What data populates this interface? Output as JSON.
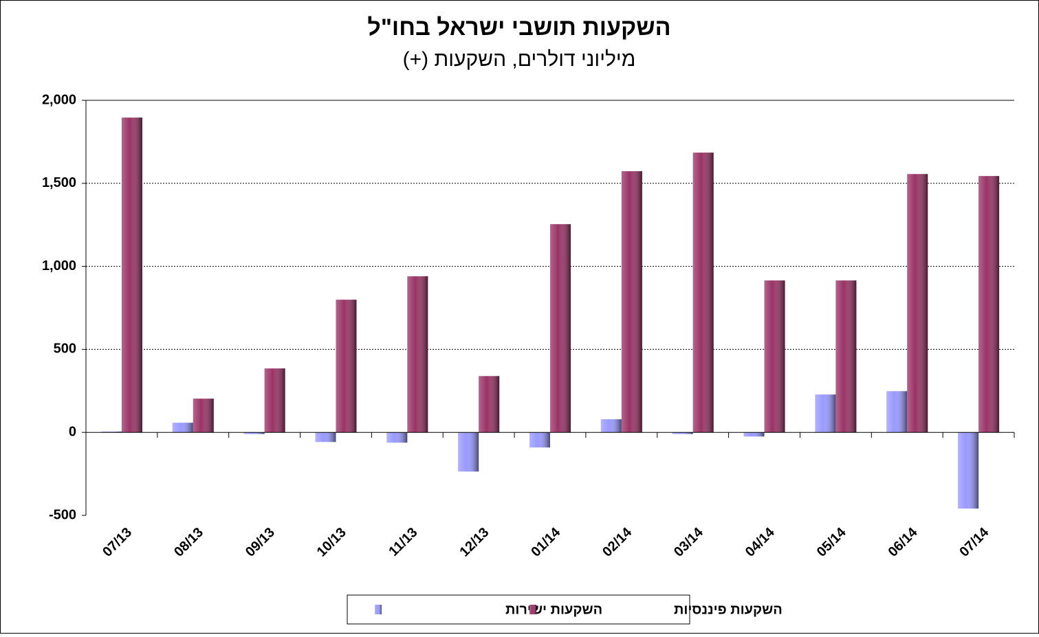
{
  "chart_data": {
    "type": "bar",
    "title": "השקעות תושבי ישראל בחו\"ל",
    "subtitle": "מיליוני דולרים, השקעות (+)",
    "categories": [
      "07/13",
      "08/13",
      "09/13",
      "10/13",
      "11/13",
      "12/13",
      "01/14",
      "02/14",
      "03/14",
      "04/14",
      "05/14",
      "06/14",
      "07/14"
    ],
    "series": [
      {
        "name": "השקעות ישירות",
        "color": "#9999ff",
        "values": [
          5,
          58,
          -10,
          -58,
          -62,
          -236,
          -91,
          79,
          -10,
          -25,
          228,
          248,
          -459
        ]
      },
      {
        "name": "השקעות פיננסיות",
        "color": "#993366",
        "values": [
          1896,
          203,
          385,
          799,
          940,
          339,
          1254,
          1573,
          1685,
          915,
          915,
          1556,
          1544
        ]
      }
    ],
    "ylim": [
      -500,
      2000
    ],
    "yticks": [
      -500,
      0,
      500,
      {
        "value": 1000,
        "label": "1,000"
      },
      {
        "value": 1500,
        "label": "1,500"
      },
      {
        "value": 2000,
        "label": "2,000"
      }
    ],
    "grid": true,
    "legend": "bottom"
  }
}
